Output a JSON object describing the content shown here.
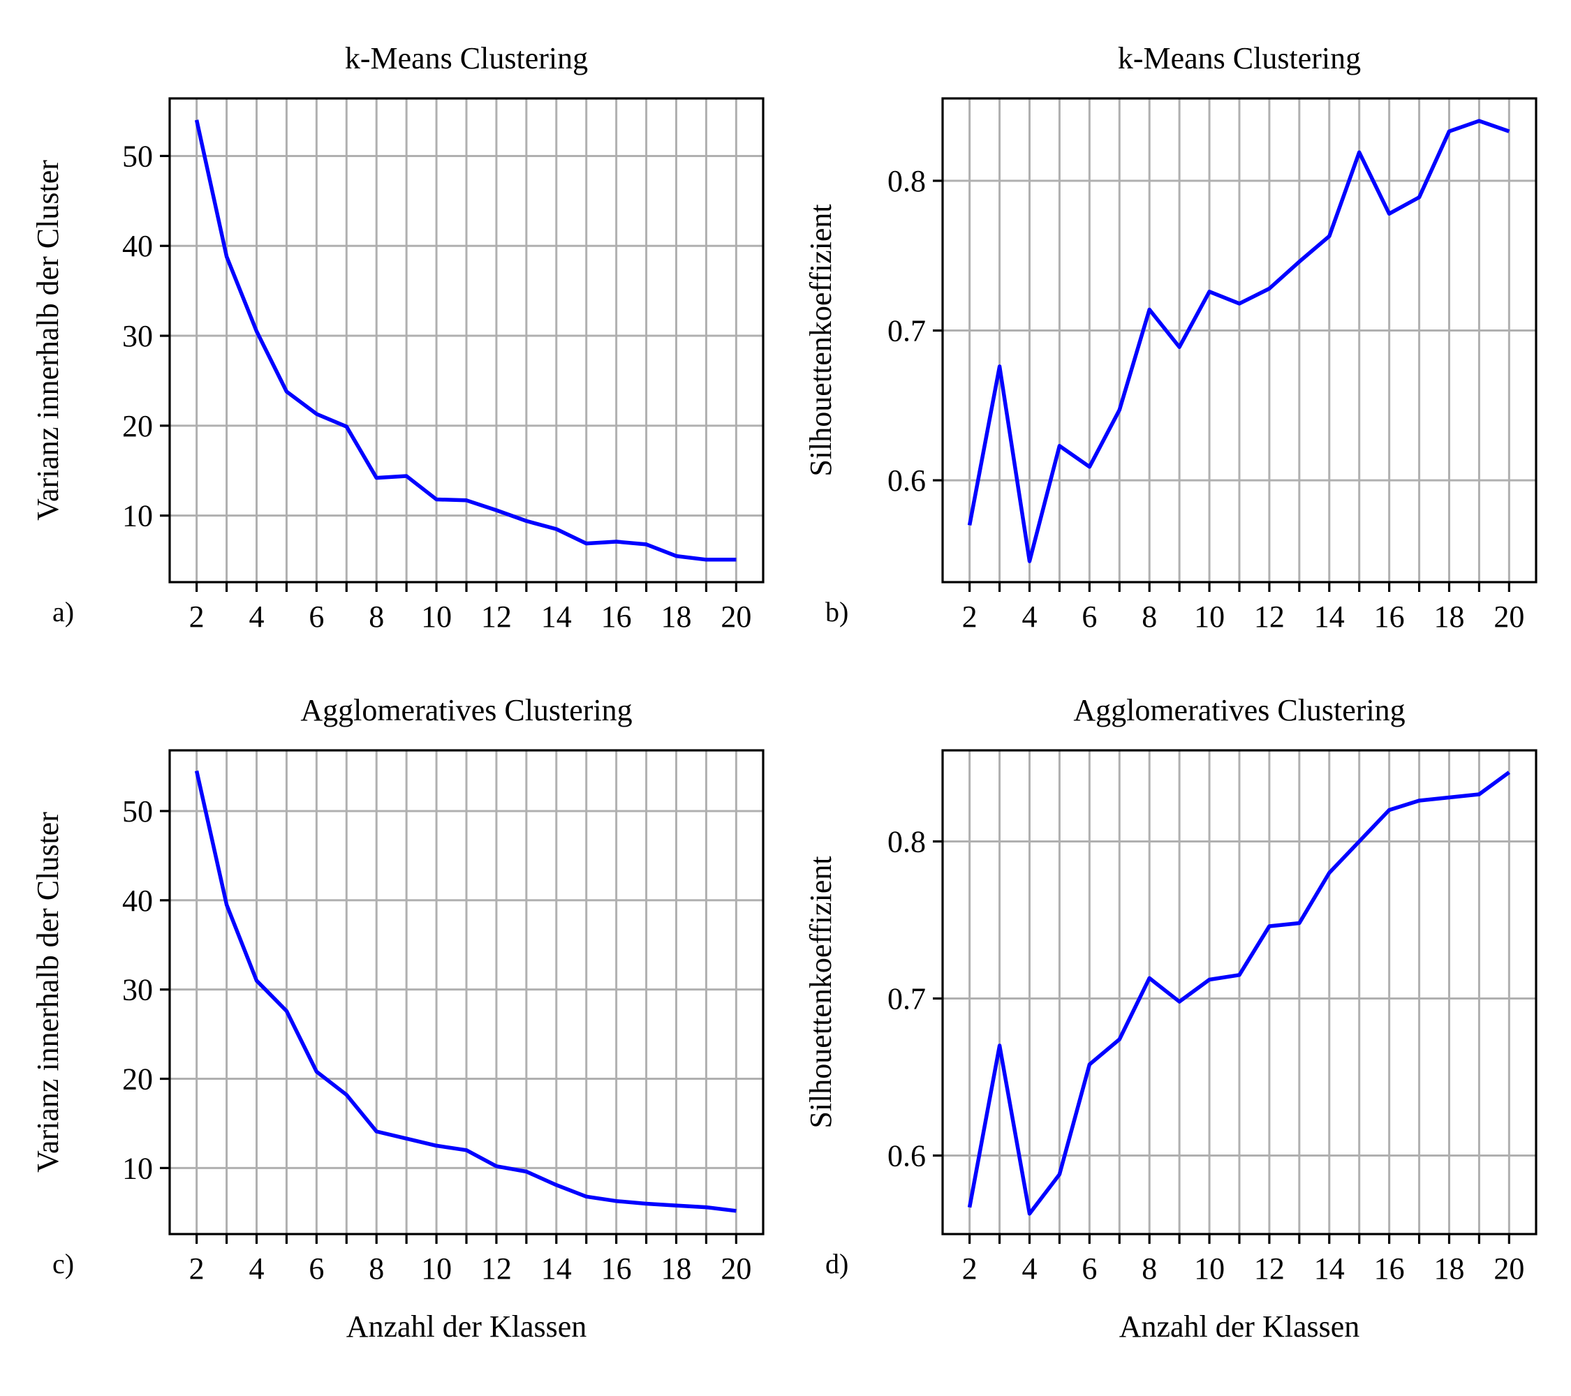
{
  "colors": {
    "line": "#0000ff",
    "grid": "#b0b0b0",
    "axes": "#000000"
  },
  "chart_data": [
    {
      "type": "line",
      "panel_label": "a)",
      "title": "k-Means Clustering",
      "xlabel": "",
      "ylabel": "Varianz innerhalb der Cluster",
      "x": [
        2,
        3,
        4,
        5,
        6,
        7,
        8,
        9,
        10,
        11,
        12,
        13,
        14,
        15,
        16,
        17,
        18,
        19,
        20
      ],
      "series": [
        {
          "values": [
            54.0,
            38.8,
            30.5,
            23.8,
            21.3,
            19.9,
            14.2,
            14.4,
            11.8,
            11.7,
            10.6,
            9.4,
            8.5,
            6.9,
            7.1,
            6.8,
            5.5,
            5.1,
            5.1
          ]
        }
      ],
      "xlim": [
        1.1,
        20.9
      ],
      "ylim": [
        2.6,
        56.4
      ],
      "xticks": [
        2,
        4,
        6,
        8,
        10,
        12,
        14,
        16,
        18,
        20
      ],
      "xtick_labels": [
        "2",
        "4",
        "6",
        "8",
        "10",
        "12",
        "14",
        "16",
        "18",
        "20"
      ],
      "yticks": [
        10,
        20,
        30,
        40,
        50
      ],
      "ytick_labels": [
        "10",
        "20",
        "30",
        "40",
        "50"
      ],
      "grid": true
    },
    {
      "type": "line",
      "panel_label": "b)",
      "title": "k-Means Clustering",
      "xlabel": "",
      "ylabel": "Silhouettenkoeffizient",
      "x": [
        2,
        3,
        4,
        5,
        6,
        7,
        8,
        9,
        10,
        11,
        12,
        13,
        14,
        15,
        16,
        17,
        18,
        19,
        20
      ],
      "series": [
        {
          "values": [
            0.57,
            0.676,
            0.546,
            0.623,
            0.609,
            0.647,
            0.714,
            0.689,
            0.726,
            0.718,
            0.728,
            0.746,
            0.763,
            0.819,
            0.778,
            0.789,
            0.833,
            0.84,
            0.833
          ]
        }
      ],
      "xlim": [
        1.1,
        20.9
      ],
      "ylim": [
        0.532,
        0.855
      ],
      "xticks": [
        2,
        4,
        6,
        8,
        10,
        12,
        14,
        16,
        18,
        20
      ],
      "xtick_labels": [
        "2",
        "4",
        "6",
        "8",
        "10",
        "12",
        "14",
        "16",
        "18",
        "20"
      ],
      "yticks": [
        0.6,
        0.7,
        0.8
      ],
      "ytick_labels": [
        "0.6",
        "0.7",
        "0.8"
      ],
      "grid": true
    },
    {
      "type": "line",
      "panel_label": "c)",
      "title": "Agglomeratives Clustering",
      "xlabel": "Anzahl der Klassen",
      "ylabel": "Varianz innerhalb der Cluster",
      "x": [
        2,
        3,
        4,
        5,
        6,
        7,
        8,
        9,
        10,
        11,
        12,
        13,
        14,
        15,
        16,
        17,
        18,
        19,
        20
      ],
      "series": [
        {
          "values": [
            54.5,
            39.5,
            31.0,
            27.6,
            20.8,
            18.2,
            14.1,
            13.3,
            12.5,
            12.0,
            10.2,
            9.6,
            8.1,
            6.8,
            6.3,
            6.0,
            5.8,
            5.6,
            5.2
          ]
        }
      ],
      "xlim": [
        1.1,
        20.9
      ],
      "ylim": [
        2.6,
        56.8
      ],
      "xticks": [
        2,
        4,
        6,
        8,
        10,
        12,
        14,
        16,
        18,
        20
      ],
      "xtick_labels": [
        "2",
        "4",
        "6",
        "8",
        "10",
        "12",
        "14",
        "16",
        "18",
        "20"
      ],
      "yticks": [
        10,
        20,
        30,
        40,
        50
      ],
      "ytick_labels": [
        "10",
        "20",
        "30",
        "40",
        "50"
      ],
      "grid": true
    },
    {
      "type": "line",
      "panel_label": "d)",
      "title": "Agglomeratives Clustering",
      "xlabel": "Anzahl der Klassen",
      "ylabel": "Silhouettenkoeffizient",
      "x": [
        2,
        3,
        4,
        5,
        6,
        7,
        8,
        9,
        10,
        11,
        12,
        13,
        14,
        15,
        16,
        17,
        18,
        19,
        20
      ],
      "series": [
        {
          "values": [
            0.567,
            0.67,
            0.563,
            0.588,
            0.658,
            0.674,
            0.713,
            0.698,
            0.712,
            0.715,
            0.746,
            0.748,
            0.78,
            0.8,
            0.82,
            0.826,
            0.828,
            0.83,
            0.844
          ]
        }
      ],
      "xlim": [
        1.1,
        20.9
      ],
      "ylim": [
        0.55,
        0.858
      ],
      "xticks": [
        2,
        4,
        6,
        8,
        10,
        12,
        14,
        16,
        18,
        20
      ],
      "xtick_labels": [
        "2",
        "4",
        "6",
        "8",
        "10",
        "12",
        "14",
        "16",
        "18",
        "20"
      ],
      "yticks": [
        0.6,
        0.7,
        0.8
      ],
      "ytick_labels": [
        "0.6",
        "0.7",
        "0.8"
      ],
      "grid": true
    }
  ]
}
